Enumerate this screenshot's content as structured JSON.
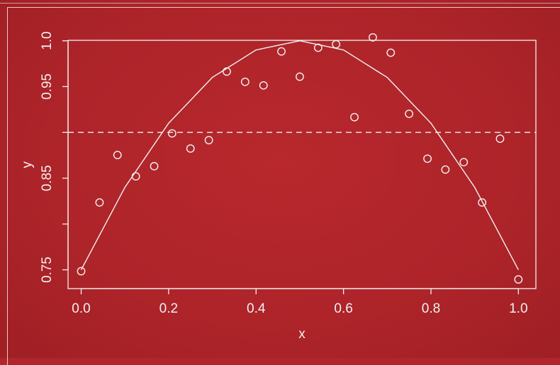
{
  "colors": {
    "background": "#b1262b",
    "foreground": "#f1f1f1"
  },
  "chart_data": {
    "type": "scatter",
    "title": "",
    "xlabel": "x",
    "ylabel": "y",
    "xlim": [
      -0.03,
      1.04
    ],
    "ylim": [
      0.7295,
      1.0005
    ],
    "x_ticks": [
      0.0,
      0.2,
      0.4,
      0.6,
      0.8,
      1.0
    ],
    "x_tick_labels": [
      "0.0",
      "0.2",
      "0.4",
      "0.6",
      "0.8",
      "1.0"
    ],
    "y_ticks": [
      0.75,
      0.85,
      0.95,
      1.0
    ],
    "y_tick_labels": [
      "0.75",
      "0.85",
      "0.95",
      "1.0"
    ],
    "y_minor_ticks": [
      0.8,
      0.9
    ],
    "grid": false,
    "legend": "none",
    "series": [
      {
        "kind": "points",
        "marker": "open-circle",
        "x": [
          0.0,
          0.042,
          0.083,
          0.125,
          0.167,
          0.208,
          0.25,
          0.292,
          0.333,
          0.375,
          0.417,
          0.458,
          0.5,
          0.542,
          0.583,
          0.625,
          0.667,
          0.708,
          0.75,
          0.792,
          0.833,
          0.875,
          0.917,
          0.958,
          1.0
        ],
        "y": [
          0.7485,
          0.8235,
          0.8753,
          0.852,
          0.8631,
          0.8989,
          0.8824,
          0.8915,
          0.9664,
          0.9552,
          0.9513,
          0.9884,
          0.9608,
          0.9924,
          0.9962,
          0.9166,
          1.0037,
          0.987,
          0.9203,
          0.8713,
          0.8594,
          0.8675,
          0.8235,
          0.8931,
          0.7395
        ]
      },
      {
        "kind": "curve",
        "style": "solid",
        "x": [
          0.0,
          0.1,
          0.2,
          0.3,
          0.4,
          0.5,
          0.6,
          0.7,
          0.8,
          0.9,
          1.0
        ],
        "y": [
          0.75,
          0.84,
          0.91,
          0.96,
          0.99,
          1.0,
          0.99,
          0.96,
          0.91,
          0.84,
          0.75
        ]
      },
      {
        "kind": "hline",
        "style": "dashed",
        "y": 0.9
      }
    ]
  }
}
